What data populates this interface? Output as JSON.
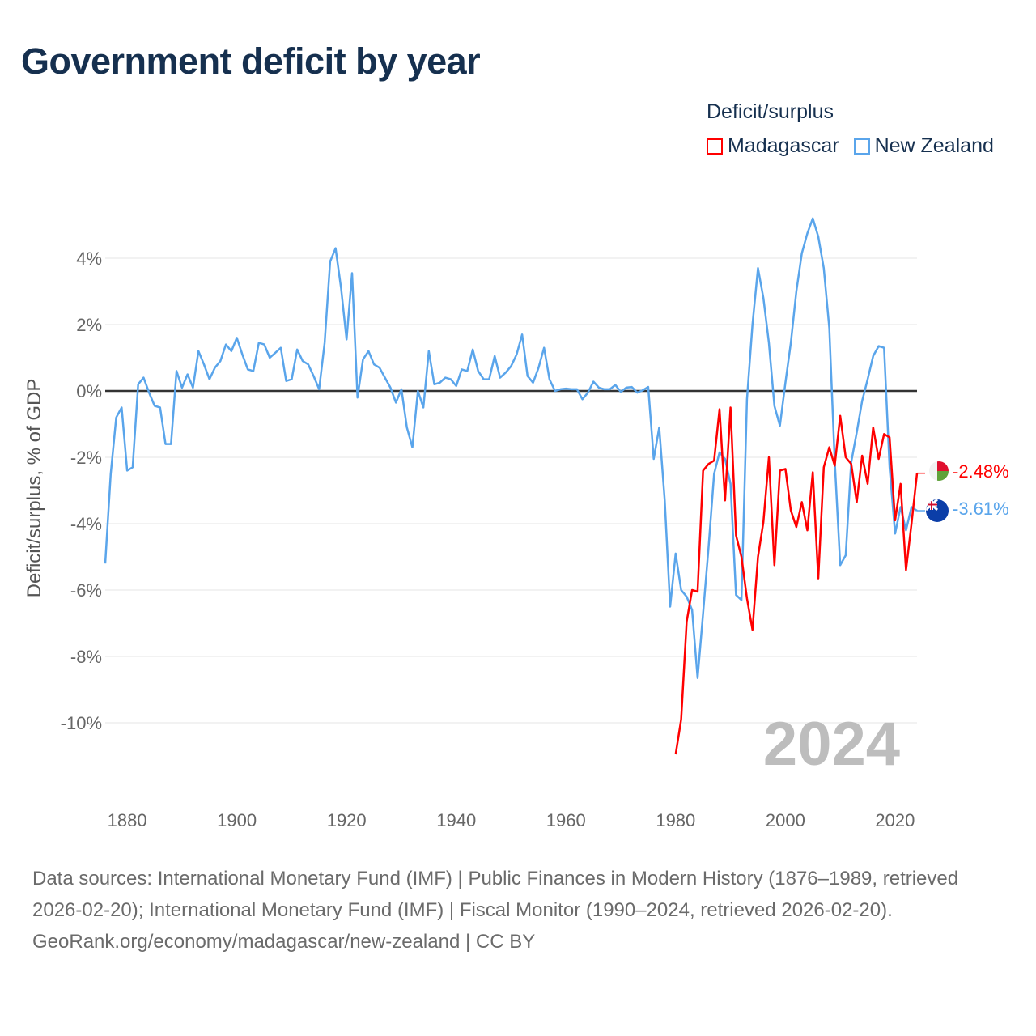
{
  "title": "Government deficit by year",
  "legend": {
    "title": "Deficit/surplus",
    "items": [
      {
        "name": "Madagascar",
        "color": "#ff0000"
      },
      {
        "name": "New Zealand",
        "color": "#5aa5eb"
      }
    ]
  },
  "year_watermark": "2024",
  "footer": {
    "sources": "Data sources: International Monetary Fund (IMF) | Public Finances in Modern History (1876–1989, retrieved 2026-02-20); International Monetary Fund (IMF) | Fiscal Monitor (1990–2024, retrieved 2026-02-20).",
    "credit": "GeoRank.org/economy/madagascar/new-zealand | CC BY"
  },
  "chart_data": {
    "type": "line",
    "title": "Government deficit by year",
    "xlabel": "",
    "ylabel": "Deficit/surplus, % of GDP",
    "xlim": [
      1876,
      2024
    ],
    "ylim": [
      -12,
      5.5
    ],
    "xticks": [
      1880,
      1900,
      1920,
      1940,
      1960,
      1980,
      2000,
      2020
    ],
    "yticks": [
      4,
      2,
      0,
      -2,
      -4,
      -6,
      -8,
      -10
    ],
    "ytick_labels": [
      "4%",
      "2%",
      "0%",
      "-2%",
      "-4%",
      "-6%",
      "-8%",
      "-10%"
    ],
    "grid": true,
    "legend_position": "top-right",
    "series": [
      {
        "name": "Madagascar",
        "color": "#ff0000",
        "end_label": "-2.48%",
        "start_year": 1980,
        "values": [
          -10.95,
          -9.9,
          -6.95,
          -6.0,
          -6.05,
          -2.4,
          -2.2,
          -2.1,
          -0.55,
          -3.3,
          -0.5,
          -4.35,
          -5.0,
          -6.25,
          -7.2,
          -5.0,
          -3.95,
          -2.0,
          -5.25,
          -2.4,
          -2.35,
          -3.6,
          -4.1,
          -3.35,
          -4.2,
          -2.45,
          -5.65,
          -2.3,
          -1.7,
          -2.25,
          -0.75,
          -2.0,
          -2.2,
          -3.35,
          -1.95,
          -2.8,
          -1.1,
          -2.05,
          -1.3,
          -1.4,
          -3.9,
          -2.8,
          -5.4,
          -4.0,
          -2.48
        ]
      },
      {
        "name": "New Zealand",
        "color": "#5aa5eb",
        "end_label": "-3.61%",
        "start_year": 1876,
        "values": [
          -5.2,
          -2.5,
          -0.8,
          -0.5,
          -2.4,
          -2.3,
          0.2,
          0.4,
          -0.05,
          -0.45,
          -0.5,
          -1.6,
          -1.6,
          0.6,
          0.1,
          0.5,
          0.1,
          1.2,
          0.8,
          0.35,
          0.7,
          0.9,
          1.4,
          1.2,
          1.6,
          1.1,
          0.65,
          0.6,
          1.45,
          1.4,
          1.0,
          1.15,
          1.3,
          0.3,
          0.35,
          1.25,
          0.9,
          0.8,
          0.45,
          0.05,
          1.45,
          3.9,
          4.3,
          3.1,
          1.55,
          3.55,
          -0.2,
          0.95,
          1.2,
          0.8,
          0.7,
          0.4,
          0.1,
          -0.35,
          0.05,
          -1.1,
          -1.7,
          0.0,
          -0.5,
          1.2,
          0.2,
          0.25,
          0.4,
          0.35,
          0.15,
          0.65,
          0.6,
          1.25,
          0.6,
          0.35,
          0.35,
          1.05,
          0.4,
          0.55,
          0.75,
          1.1,
          1.7,
          0.45,
          0.25,
          0.7,
          1.3,
          0.35,
          0.0,
          0.05,
          0.07,
          0.05,
          0.05,
          -0.25,
          -0.05,
          0.28,
          0.1,
          0.05,
          0.05,
          0.18,
          -0.03,
          0.1,
          0.12,
          -0.05,
          0.02,
          0.12,
          -2.05,
          -1.1,
          -3.3,
          -6.5,
          -4.9,
          -6.0,
          -6.2,
          -6.6,
          -8.65,
          -6.7,
          -4.7,
          -2.5,
          -1.85,
          -2.05,
          -2.8,
          -6.15,
          -6.3,
          -0.25,
          2.0,
          3.7,
          2.8,
          1.45,
          -0.45,
          -1.05,
          0.25,
          1.45,
          3.0,
          4.15,
          4.75,
          5.2,
          4.65,
          3.7,
          1.9,
          -2.1,
          -5.25,
          -4.95,
          -2.15,
          -1.25,
          -0.3,
          0.35,
          1.05,
          1.35,
          1.3,
          -2.3,
          -4.3,
          -3.5,
          -4.2,
          -3.5,
          -3.61
        ]
      }
    ]
  }
}
